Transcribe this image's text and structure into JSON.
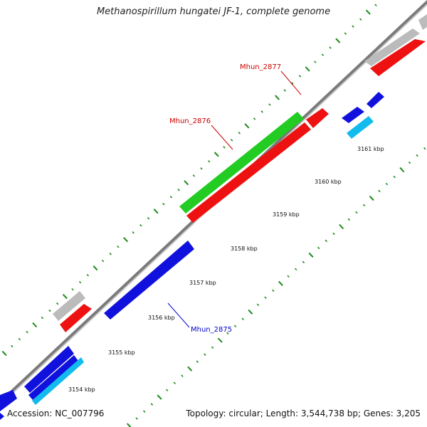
{
  "title": "Methanospirillum hungatei JF-1, complete genome",
  "footer": {
    "accession": "Accession: NC_007796",
    "topology": "Topology: circular; Length: 3,544,738 bp; Genes: 3,205"
  },
  "gene_labels": [
    {
      "text": "Mhun_2877",
      "color": "#cc0000"
    },
    {
      "text": "Mhun_2876",
      "color": "#cc0000"
    },
    {
      "text": "Mhun_2875",
      "color": "#0000cc"
    }
  ],
  "tick_labels": [
    "3154 kbp",
    "3155 kbp",
    "3156 kbp",
    "3157 kbp",
    "3158 kbp",
    "3159 kbp",
    "3160 kbp",
    "3161 kbp"
  ],
  "colors": {
    "backbone": "#888888",
    "tick": "#1a8a1a",
    "cds_forward": "#ee1111",
    "cds_reverse": "#1111dd",
    "rna": "#22cc22",
    "pseudo": "#bbbbbb",
    "cyan": "#11bbee"
  }
}
